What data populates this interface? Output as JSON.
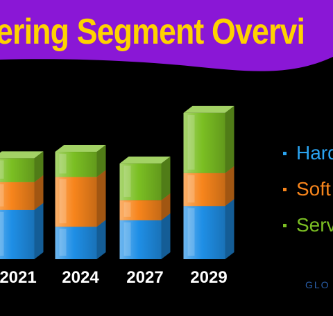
{
  "title": "fering Segment Overvi",
  "footer": "GLO",
  "colors": {
    "banner": "#8a17d6",
    "title": "#ffd200",
    "background": "#000000",
    "hardware": "#1f8fe6",
    "software": "#f7851c",
    "services": "#7bbf23"
  },
  "legend": [
    {
      "label": "Hard",
      "color": "#2aa3f0"
    },
    {
      "label": "Soft",
      "color": "#f7851c"
    },
    {
      "label": "Serv",
      "color": "#7bbf23"
    }
  ],
  "chart_data": {
    "type": "bar",
    "stacked": true,
    "style": "3d",
    "categories": [
      "2021",
      "2024",
      "2027",
      "2029"
    ],
    "series": [
      {
        "values": [
          38,
          25,
          30,
          41
        ]
      },
      {
        "values": [
          23,
          40,
          17,
          27
        ]
      },
      {
        "values": [
          20,
          21,
          30,
          48
        ]
      }
    ],
    "ylim": [
      0,
      140
    ],
    "grid": false,
    "legend_position": "right"
  }
}
